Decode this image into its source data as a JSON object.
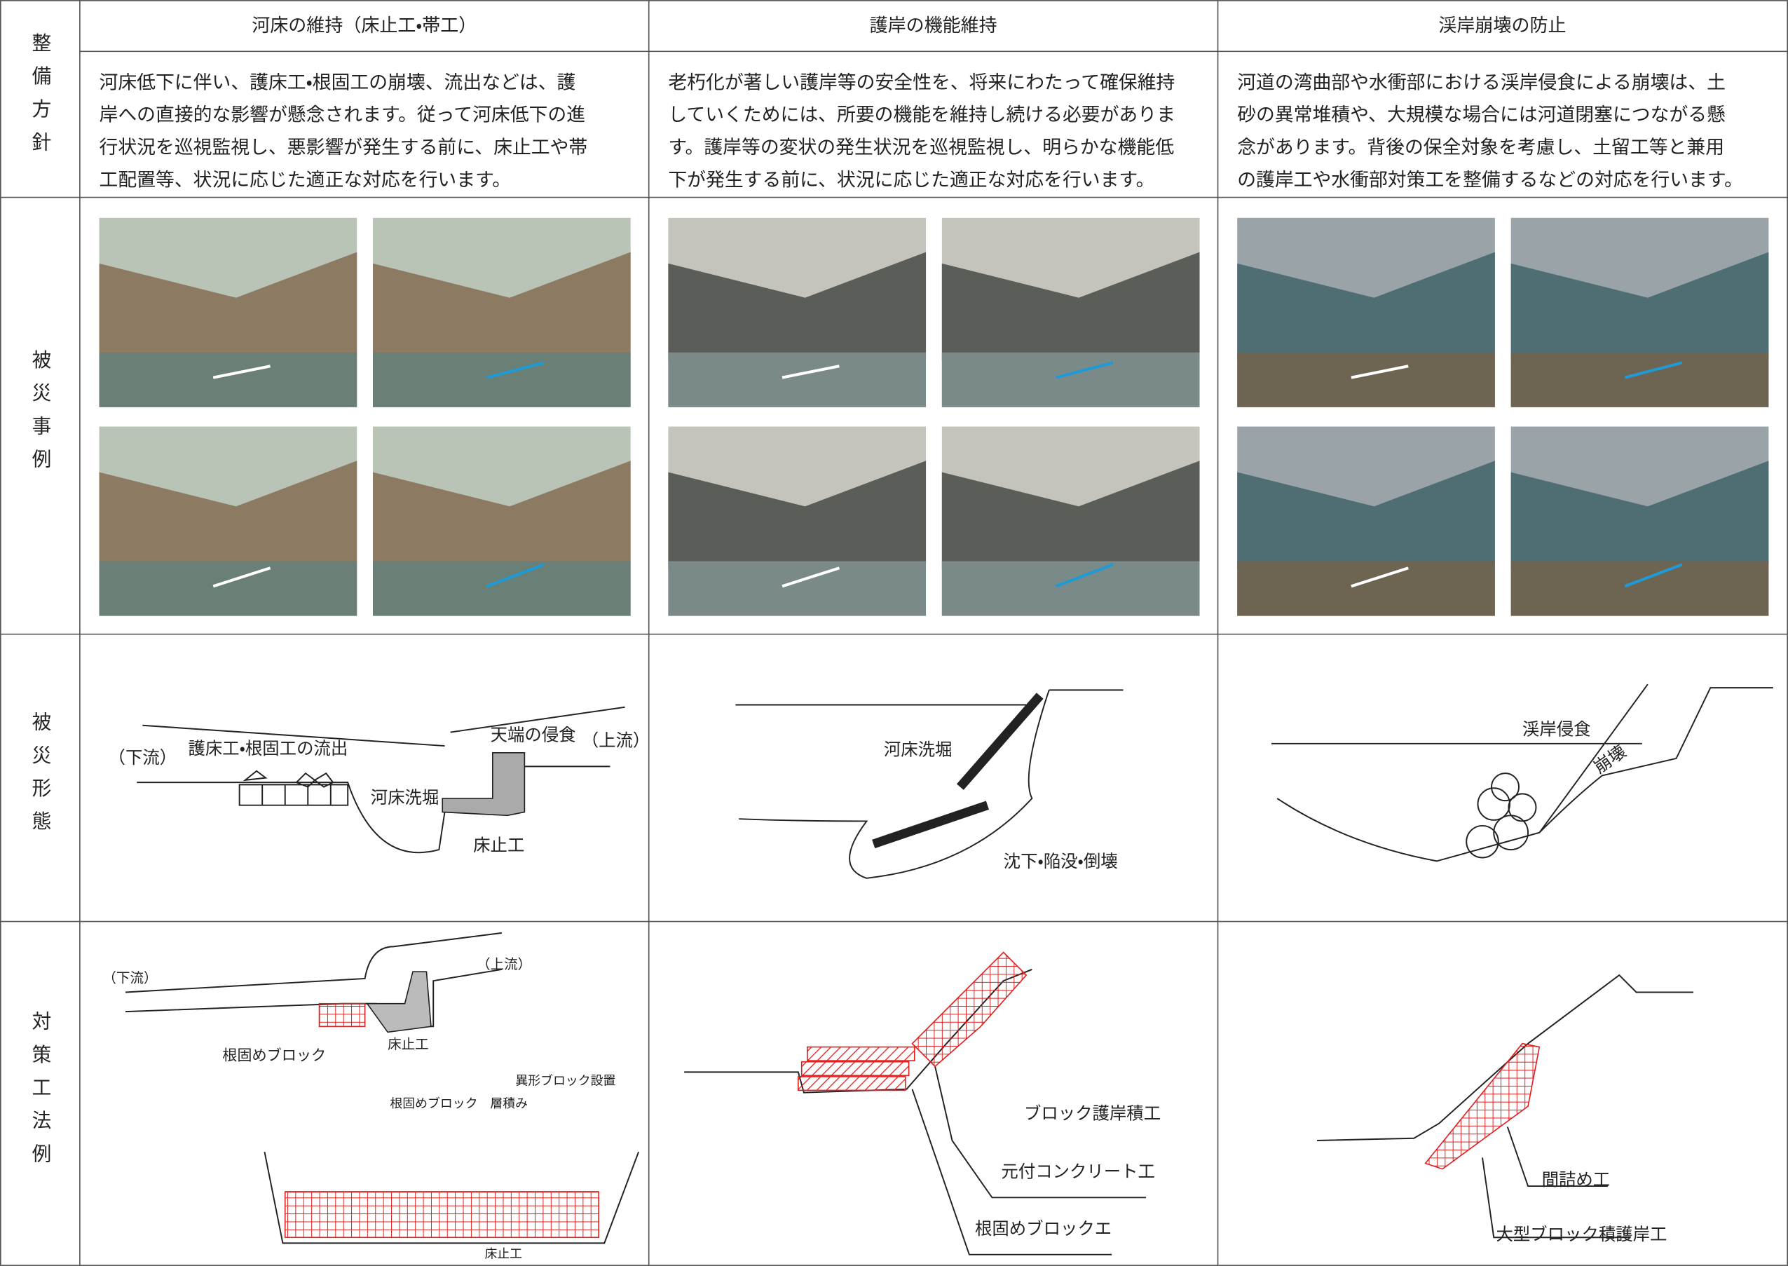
{
  "table": {
    "headers": [
      "河床の維持（床止工・帯工）",
      "護岸の機能維持",
      "渓岸崩壊の防止"
    ],
    "row_labels": [
      "整備方針",
      "被災事例",
      "被災形態",
      "対策工法例"
    ],
    "policy": [
      [
        "河床低下に伴い、護床工・根固工の崩壊、流出などは、護",
        "岸への直接的な影響が懸念されます。従って河床低下の進",
        "行状況を巡視監視し、悪影響が発生する前に、床止工や帯",
        "工配置等、状況に応じた適正な対応を行います。"
      ],
      [
        "老朽化が著しい護岸等の安全性を、将来にわたって確保維持",
        "していくためには、所要の機能を維持し続ける必要がありま",
        "す。護岸等の変状の発生状況を巡視監視し、明らかな機能低",
        "下が発生する前に、状況に応じた適正な対応を行います。"
      ],
      [
        "河道の湾曲部や水衝部における渓岸侵食による崩壊は、土",
        "砂の異常堆積や、大規模な場合には河道閉塞につながる懸",
        "念があります。背後の保全対象を考慮し、土留工等と兼用",
        "の護岸工や水衝部対策工を整備するなどの対応を行います。"
      ]
    ],
    "forms": [
      [
        "護床工・根固工の流出",
        "天端の侵食",
        "（下流）",
        "（上流）",
        "河床洗堀",
        "床止工"
      ],
      [
        "河床洗堀",
        "沈下・陥没・倒壊"
      ],
      [
        "渓岸侵食",
        "崩壊"
      ]
    ],
    "measures": [
      [
        "（下流）",
        "（上流）",
        "根固めブロック",
        "床止工",
        "異形ブロック設置",
        "根固めブロック　層積み",
        "床止工"
      ],
      [
        "ブロック護岸積工",
        "元付コンクリート工",
        "根固めブロックエ"
      ],
      [
        "間詰め工",
        "大型ブロック積護岸工"
      ]
    ]
  }
}
